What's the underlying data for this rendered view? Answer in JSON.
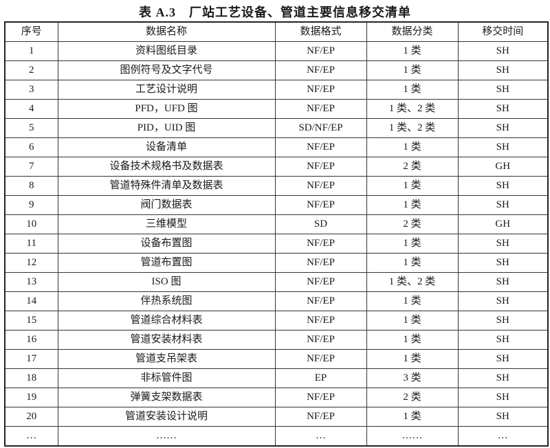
{
  "title": "表 A.3　厂站工艺设备、管道主要信息移交清单",
  "headers": [
    "序号",
    "数据名称",
    "数据格式",
    "数据分类",
    "移交时间"
  ],
  "rows": [
    [
      "1",
      "资料图纸目录",
      "NF/EP",
      "1 类",
      "SH"
    ],
    [
      "2",
      "图例符号及文字代号",
      "NF/EP",
      "1 类",
      "SH"
    ],
    [
      "3",
      "工艺设计说明",
      "NF/EP",
      "1 类",
      "SH"
    ],
    [
      "4",
      "PFD，UFD 图",
      "NF/EP",
      "1 类、2 类",
      "SH"
    ],
    [
      "5",
      "PID，UID 图",
      "SD/NF/EP",
      "1 类、2 类",
      "SH"
    ],
    [
      "6",
      "设备清单",
      "NF/EP",
      "1 类",
      "SH"
    ],
    [
      "7",
      "设备技术规格书及数据表",
      "NF/EP",
      "2 类",
      "GH"
    ],
    [
      "8",
      "管道特殊件清单及数据表",
      "NF/EP",
      "1 类",
      "SH"
    ],
    [
      "9",
      "阀门数据表",
      "NF/EP",
      "1 类",
      "SH"
    ],
    [
      "10",
      "三维模型",
      "SD",
      "2 类",
      "GH"
    ],
    [
      "11",
      "设备布置图",
      "NF/EP",
      "1 类",
      "SH"
    ],
    [
      "12",
      "管道布置图",
      "NF/EP",
      "1 类",
      "SH"
    ],
    [
      "13",
      "ISO 图",
      "NF/EP",
      "1 类、2 类",
      "SH"
    ],
    [
      "14",
      "伴热系统图",
      "NF/EP",
      "1 类",
      "SH"
    ],
    [
      "15",
      "管道综合材料表",
      "NF/EP",
      "1 类",
      "SH"
    ],
    [
      "16",
      "管道安装材料表",
      "NF/EP",
      "1 类",
      "SH"
    ],
    [
      "17",
      "管道支吊架表",
      "NF/EP",
      "1 类",
      "SH"
    ],
    [
      "18",
      "非标管件图",
      "EP",
      "3 类",
      "SH"
    ],
    [
      "19",
      "弹簧支架数据表",
      "NF/EP",
      "2 类",
      "SH"
    ],
    [
      "20",
      "管道安装设计说明",
      "NF/EP",
      "1 类",
      "SH"
    ],
    [
      "…",
      "……",
      "…",
      "……",
      "…"
    ]
  ]
}
